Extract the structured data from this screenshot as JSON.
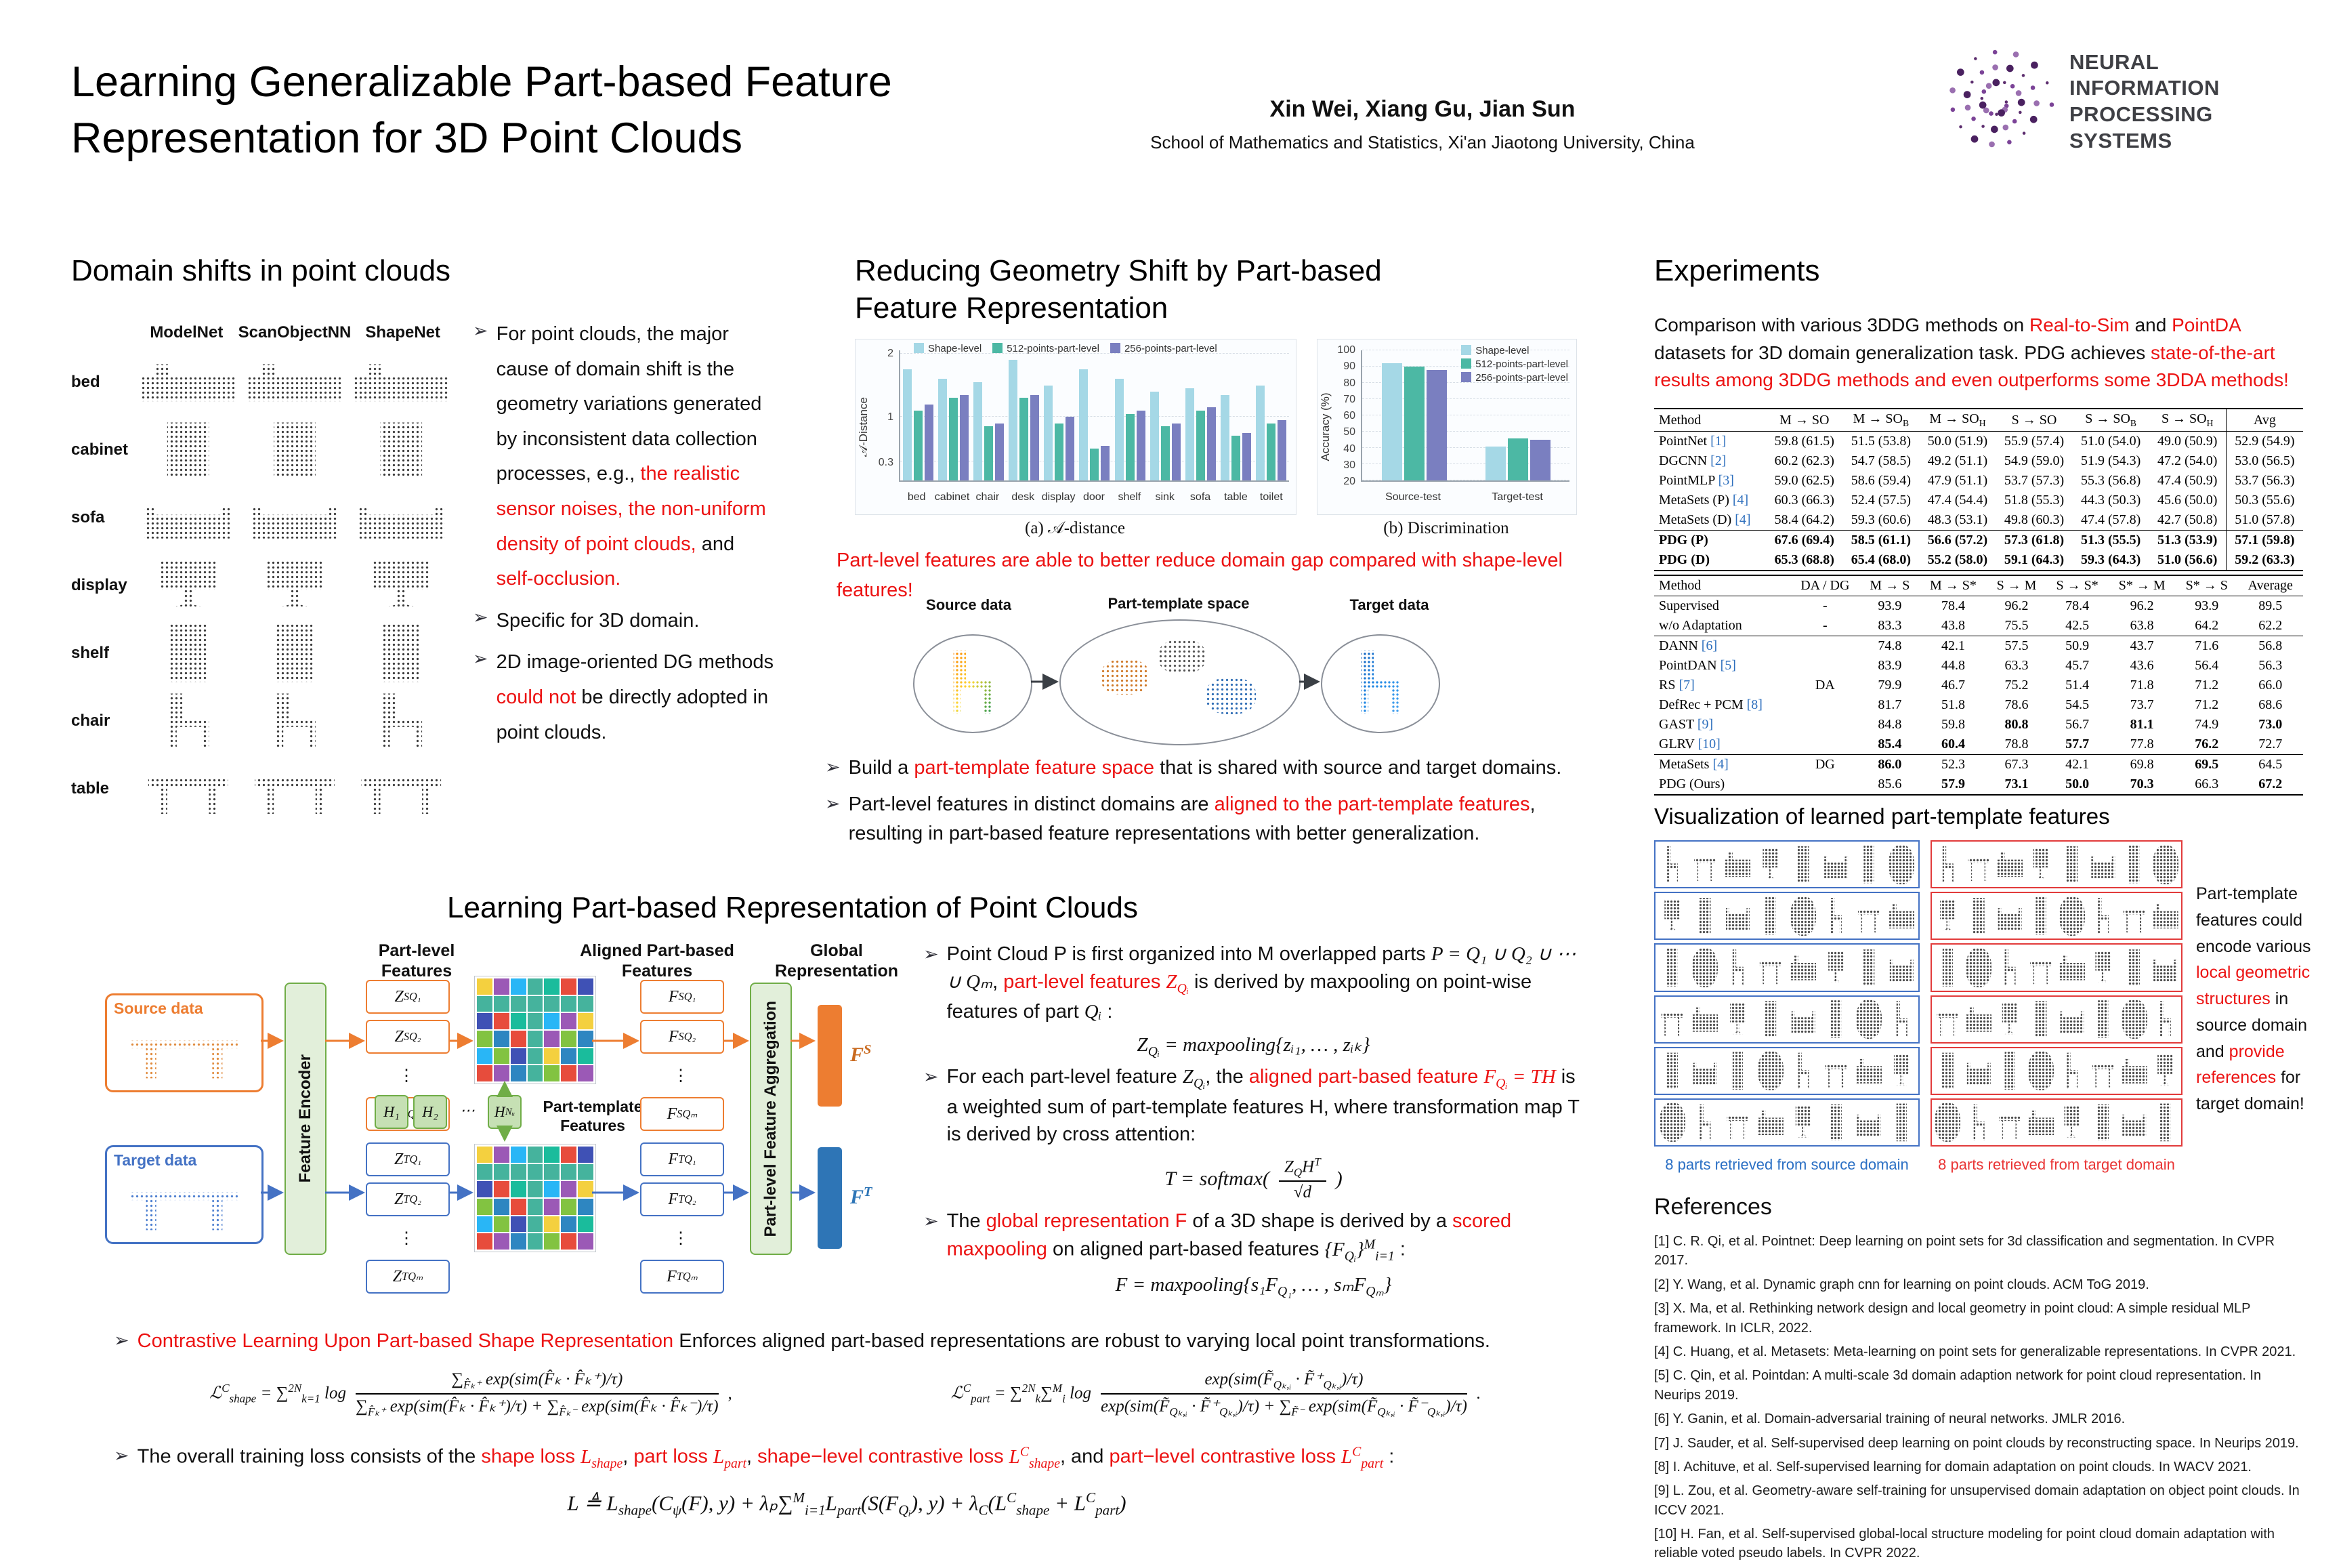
{
  "colors": {
    "accent_red": "#ec1313",
    "source_orange": "#ED7D31",
    "target_blue": "#4472C4",
    "template_green": "#70AD47",
    "chart_shape_level": "#a5d8e6",
    "chart_512_part": "#4cb8a4",
    "chart_256_part": "#7a7fc0"
  },
  "header": {
    "title": "Learning Generalizable Part-based Feature Representation for 3D Point Clouds",
    "authors": "Xin Wei, Xiang Gu, Jian Sun",
    "affiliation": "School of Mathematics and Statistics, Xi'an Jiaotong University, China",
    "logo_line1": "NEURAL INFORMATION",
    "logo_line2": "PROCESSING SYSTEMS"
  },
  "domain_shifts": {
    "heading": "Domain shifts in point clouds",
    "figure": {
      "columns": [
        "ModelNet",
        "ScanObjectNN",
        "ShapeNet"
      ],
      "rows": [
        "bed",
        "cabinet",
        "sofa",
        "display",
        "shelf",
        "chair",
        "table"
      ]
    },
    "bullets": [
      [
        {
          "t": "For point clouds, the major cause of domain shift is the geometry variations generated by inconsistent data collection processes, e.g., "
        },
        {
          "t": "the realistic sensor noises, the non-uniform density of point clouds,",
          "c": "red"
        },
        {
          "t": " and "
        },
        {
          "t": "self-occlusion.",
          "c": "red"
        }
      ],
      [
        {
          "t": "Specific for 3D domain."
        }
      ],
      [
        {
          "t": "2D image-oriented DG methods "
        },
        {
          "t": "could not",
          "c": "red"
        },
        {
          "t": " be directly adopted in point clouds."
        }
      ]
    ]
  },
  "geometry_shift": {
    "heading": "Reducing Geometry Shift by Part-based Feature Representation",
    "note": [
      {
        "t": "Part-level features are able to better reduce domain gap compared with shape-level features!",
        "c": "red"
      }
    ],
    "figure_labels": {
      "source": "Source data",
      "template": "Part-template space",
      "target": "Target data"
    },
    "bullets": [
      [
        {
          "t": "Build a "
        },
        {
          "t": "part-template feature space",
          "c": "red"
        },
        {
          "t": " that is shared with source and target domains."
        }
      ],
      [
        {
          "t": "Part-level features in distinct domains are "
        },
        {
          "t": "aligned to the part-template features",
          "c": "red"
        },
        {
          "t": ", resulting in part-based feature representations with better generalization."
        }
      ]
    ]
  },
  "chart_data": [
    {
      "type": "bar",
      "title": "(a) 𝒜-distance",
      "ylabel": "𝒜-Distance",
      "ylim": [
        0,
        2.05
      ],
      "yticks": [
        0.3,
        1.0,
        2.0
      ],
      "categories": [
        "bed",
        "cabinet",
        "chair",
        "desk",
        "display",
        "door",
        "shelf",
        "sink",
        "sofa",
        "table",
        "toilet"
      ],
      "series": [
        {
          "name": "Shape-level",
          "color": "#a5d8e6",
          "values": [
            1.75,
            1.6,
            1.55,
            1.9,
            1.5,
            1.75,
            1.6,
            1.4,
            1.45,
            1.35,
            1.5
          ]
        },
        {
          "name": "512-points-part-level",
          "color": "#4cb8a4",
          "values": [
            1.1,
            1.3,
            0.85,
            1.3,
            0.9,
            0.5,
            1.05,
            0.85,
            1.1,
            0.7,
            0.9
          ]
        },
        {
          "name": "256-points-part-level",
          "color": "#7a7fc0",
          "values": [
            1.2,
            1.35,
            0.9,
            1.35,
            1.0,
            0.55,
            1.1,
            0.9,
            1.15,
            0.75,
            0.95
          ]
        }
      ],
      "legend_position": "top"
    },
    {
      "type": "bar",
      "title": "(b) Discrimination",
      "ylabel": "Accuracy (%)",
      "ylim": [
        20,
        100
      ],
      "yticks": [
        20,
        30,
        40,
        50,
        60,
        70,
        80,
        90,
        100
      ],
      "categories": [
        "Source-test",
        "Target-test"
      ],
      "series": [
        {
          "name": "Shape-level",
          "color": "#a5d8e6",
          "values": [
            92,
            41
          ]
        },
        {
          "name": "512-points-part-level",
          "color": "#4cb8a4",
          "values": [
            90,
            46
          ]
        },
        {
          "name": "256-points-part-level",
          "color": "#7a7fc0",
          "values": [
            88,
            45
          ]
        }
      ],
      "legend_position": "top-right"
    }
  ],
  "method": {
    "heading": "Learning Part-based Representation of Point Clouds",
    "diagram": {
      "source_label": "Source data",
      "target_label": "Target data",
      "encoder_label": "Feature Encoder",
      "part_header": "Part-level Features",
      "aligned_header": "Aligned Part-based Features",
      "global_header": "Global Representation",
      "aggregation_label": "Part-level Feature Aggregation",
      "template_label": "Part-template Features",
      "z_source": [
        "Z^{S}_{Q₁}",
        "Z^{S}_{Q₂}",
        "⋮",
        "Z^{S}_{Qₘ}"
      ],
      "z_target": [
        "Z^{T}_{Q₁}",
        "Z^{T}_{Q₂}",
        "⋮",
        "Z^{T}_{Qₘ}"
      ],
      "f_source": [
        "F^{S}_{Q₁}",
        "F^{S}_{Q₂}",
        "⋮",
        "F^{S}_{Qₘ}"
      ],
      "f_target": [
        "F^{T}_{Q₁}",
        "F^{T}_{Q₂}",
        "⋮",
        "F^{T}_{Qₘ}"
      ],
      "templates": [
        "H₁",
        "H₂",
        "⋯",
        "H_{Nᵤ}"
      ],
      "global_source": "F^{S}",
      "global_target": "F^{T}"
    },
    "bullets": {
      "b1": [
        {
          "t": "Point Cloud P is first organized into M overlapped parts "
        },
        {
          "t": "P = Q₁ ∪ Q₂ ∪ ⋯ ∪ Qₘ",
          "m": 1
        },
        {
          "t": ", "
        },
        {
          "t": "part-level features ",
          "c": "red"
        },
        {
          "t": "Z_{Qᵢ}",
          "c": "red",
          "m": 1
        },
        {
          "t": " is derived by maxpooling on point-wise features of part "
        },
        {
          "t": "Qᵢ",
          "m": 1
        },
        {
          "t": " :"
        }
      ],
      "b2": [
        {
          "t": "For each part-level feature "
        },
        {
          "t": "Z_{Qᵢ}",
          "m": 1
        },
        {
          "t": ", the "
        },
        {
          "t": "aligned part-based feature ",
          "c": "red"
        },
        {
          "t": "F_{Qᵢ} = TH",
          "c": "red",
          "m": 1
        },
        {
          "t": " is a weighted sum of part-template features H, where transformation map T is derived by cross attention:"
        }
      ],
      "b3": [
        {
          "t": "The "
        },
        {
          "t": "global representation F",
          "c": "red"
        },
        {
          "t": " of a 3D shape is derived by a "
        },
        {
          "t": "scored maxpooling",
          "c": "red"
        },
        {
          "t": " on aligned part-based features "
        },
        {
          "t": "{F_{Qᵢ}}^{M}_{i=1}",
          "m": 1
        },
        {
          "t": " :"
        }
      ]
    },
    "contrastive": [
      {
        "t": "Contrastive Learning Upon Part-based Shape Representation",
        "c": "red"
      },
      {
        "t": " Enforces aligned part-based representations are robust to varying local point transformations."
      }
    ],
    "loss_line": [
      {
        "t": "The overall training loss consists of the "
      },
      {
        "t": "shape loss ",
        "c": "red"
      },
      {
        "t": "L_{shape}",
        "c": "red",
        "m": 1
      },
      {
        "t": ", "
      },
      {
        "t": "part loss ",
        "c": "red"
      },
      {
        "t": "L_{part}",
        "c": "red",
        "m": 1
      },
      {
        "t": ", "
      },
      {
        "t": "shape−level contrastive loss ",
        "c": "red"
      },
      {
        "t": "L^{C}_{shape}",
        "c": "red",
        "m": 1
      },
      {
        "t": ", and "
      },
      {
        "t": "part−level contrastive loss ",
        "c": "red"
      },
      {
        "t": "L^{C}_{part}",
        "c": "red",
        "m": 1
      },
      {
        "t": " :"
      }
    ],
    "formulas": {
      "zq": "Z_{Qᵢ} = maxpooling{zᵢ₁, … , zᵢₖ}",
      "t_lhs": "T = softmax(",
      "t_num": "Z_{Q}H^{T}",
      "t_den": "√d",
      "t_rhs": ")",
      "f": "F = maxpooling{s₁F_{Q₁}, … , sₘF_{Qₘ}}",
      "lshape_lhs": "ℒ^{C}_{shape} = ∑^{2N}_{k=1} log",
      "lshape_num": "∑_{F̂ₖ⁺} exp(sim(F̂ₖ · F̂ₖ⁺)/τ)",
      "lshape_den": "∑_{F̂ₖ⁺} exp(sim(F̂ₖ · F̂ₖ⁺)/τ) + ∑_{F̂ₖ⁻} exp(sim(F̂ₖ · F̂ₖ⁻)/τ)",
      "lshape_end": ",",
      "lpart_lhs": "ℒ^{C}_{part} = ∑^{2N}_{k}∑^{M}_{i} log",
      "lpart_num": "exp(sim(F̃_{Qₖ,ᵢ} · F̃⁺_{Qₖ,ᵢ})/τ)",
      "lpart_den": "exp(sim(F̃_{Qₖ,ᵢ} · F̃⁺_{Qₖ,ᵢ})/τ) + ∑_{F̃⁻} exp(sim(F̃_{Qₖ,ᵢ} · F̃⁻_{Qₖ,ᵢ})/τ)",
      "lpart_end": ".",
      "total": "L ≜ L_{shape}(C_{ψ}(F), y) + λₚ∑^{M}_{i=1}L_{part}(S(F_{Qᵢ}), y) + λ_{C}(L^{C}_{shape} + L^{C}_{part})"
    }
  },
  "experiments": {
    "heading": "Experiments",
    "intro": [
      {
        "t": "Comparison with various 3DDG methods on "
      },
      {
        "t": "Real-to-Sim",
        "c": "red"
      },
      {
        "t": " and "
      },
      {
        "t": "PointDA",
        "c": "red"
      },
      {
        "t": " datasets for 3D domain generalization task. PDG achieves "
      },
      {
        "t": "state-of-the-art results among 3DDG methods and even outperforms some 3DDA methods!",
        "c": "red"
      }
    ],
    "table1": {
      "headers": [
        "Method",
        "M → SO",
        "M → SO_{B}",
        "M → SO_{H}",
        "S → SO",
        "S → SO_{B}",
        "S → SO_{H}",
        "Avg"
      ],
      "rows": [
        {
          "c": [
            "PointNet [1]",
            "59.8 (61.5)",
            "51.5 (53.8)",
            "50.0 (51.9)",
            "55.9 (57.4)",
            "51.0 (54.0)",
            "49.0 (50.9)",
            "52.9 (54.9)"
          ]
        },
        {
          "c": [
            "DGCNN [2]",
            "60.2 (62.3)",
            "54.7 (58.5)",
            "49.2 (51.1)",
            "54.9 (59.0)",
            "51.9 (54.3)",
            "47.2 (54.0)",
            "53.0 (56.5)"
          ]
        },
        {
          "c": [
            "PointMLP [3]",
            "59.0 (62.5)",
            "58.6 (59.4)",
            "47.9 (51.1)",
            "53.7 (57.3)",
            "55.3 (56.8)",
            "47.4 (50.9)",
            "53.7 (56.3)"
          ]
        },
        {
          "c": [
            "MetaSets (P) [4]",
            "60.3 (66.3)",
            "52.4 (57.5)",
            "47.4 (54.4)",
            "51.8 (55.3)",
            "44.3 (50.3)",
            "45.6 (50.0)",
            "50.3 (55.6)"
          ]
        },
        {
          "c": [
            "MetaSets (D) [4]",
            "58.4 (64.2)",
            "59.3 (60.6)",
            "48.3 (53.1)",
            "49.8 (60.3)",
            "47.4 (57.8)",
            "42.7 (50.8)",
            "51.0 (57.8)"
          ]
        },
        {
          "c": [
            "PDG (P)",
            "67.6 (69.4)",
            "58.5 (61.1)",
            "56.6 (57.2)",
            "57.3 (61.8)",
            "51.3 (55.5)",
            "51.3 (53.9)",
            "57.1 (59.8)"
          ],
          "bold": true,
          "top": true
        },
        {
          "c": [
            "PDG (D)",
            "65.3 (68.8)",
            "65.4 (68.0)",
            "55.2 (58.0)",
            "59.1 (64.3)",
            "59.3 (64.3)",
            "51.0 (56.6)",
            "59.2 (63.3)"
          ],
          "bold": true
        }
      ]
    },
    "table2": {
      "headers": [
        "Method",
        "DA / DG",
        "M → S",
        "M → S*",
        "S → M",
        "S → S*",
        "S* → M",
        "S* → S",
        "Average"
      ],
      "rows": [
        {
          "c": [
            "Supervised",
            "-",
            "93.9",
            "78.4",
            "96.2",
            "78.4",
            "96.2",
            "93.9",
            "89.5"
          ]
        },
        {
          "c": [
            "w/o Adaptation",
            "-",
            "83.3",
            "43.8",
            "75.5",
            "42.5",
            "63.8",
            "64.2",
            "62.2"
          ]
        },
        {
          "c": [
            "DANN [6]",
            "",
            "74.8",
            "42.1",
            "57.5",
            "50.9",
            "43.7",
            "71.6",
            "56.8"
          ],
          "top": true
        },
        {
          "c": [
            "PointDAN [5]",
            "",
            "83.9",
            "44.8",
            "63.3",
            "45.7",
            "43.6",
            "56.4",
            "56.3"
          ]
        },
        {
          "c": [
            "RS [7]",
            "DA",
            "79.9",
            "46.7",
            "75.2",
            "51.4",
            "71.8",
            "71.2",
            "66.0"
          ]
        },
        {
          "c": [
            "DefRec + PCM [8]",
            "",
            "81.7",
            "51.8",
            "78.6",
            "54.5",
            "73.7",
            "71.2",
            "68.6"
          ]
        },
        {
          "c": [
            "GAST [9]",
            "",
            "84.8",
            "59.8",
            "**80.8**",
            "56.7",
            "**81.1**",
            "74.9",
            "**73.0**"
          ]
        },
        {
          "c": [
            "GLRV [10]",
            "",
            "**85.4**",
            "**60.4**",
            "78.8",
            "**57.7**",
            "77.8",
            "**76.2**",
            "72.7"
          ]
        },
        {
          "c": [
            "MetaSets [4]",
            "DG",
            "**86.0**",
            "52.3",
            "67.3",
            "42.1",
            "69.8",
            "**69.5**",
            "64.5"
          ],
          "top": true
        },
        {
          "c": [
            "PDG (Ours)",
            "",
            "85.6",
            "**57.9**",
            "**73.1**",
            "**50.0**",
            "**70.3**",
            "66.3",
            "**67.2**"
          ]
        }
      ]
    },
    "viz": {
      "heading": "Visualization of learned part-template features",
      "caption_left": "8 parts retrieved from source domain",
      "caption_right": "8 parts retrieved from target domain",
      "note": [
        {
          "t": "Part-template features could encode various "
        },
        {
          "t": "local geometric structures",
          "c": "red"
        },
        {
          "t": " in source domain and "
        },
        {
          "t": "provide references",
          "c": "red"
        },
        {
          "t": " for target domain!"
        }
      ]
    },
    "references": {
      "heading": "References",
      "items": [
        "[1] C. R. Qi, et al. Pointnet: Deep learning on point sets for 3d classification and segmentation. In CVPR 2017.",
        "[2] Y. Wang, et al. Dynamic graph cnn for learning on point clouds. ACM ToG 2019.",
        "[3] X. Ma, et al. Rethinking network design and local geometry in point cloud: A simple residual MLP framework. In ICLR, 2022.",
        "[4] C. Huang, et al. Metasets: Meta-learning on point sets for generalizable representations. In CVPR 2021.",
        "[5] C. Qin, et al. Pointdan: A multi-scale 3d domain adaption network for point cloud representation. In Neurips 2019.",
        "[6] Y. Ganin, et al. Domain-adversarial training of neural networks. JMLR 2016.",
        "[7] J. Sauder, et al. Self-supervised deep learning on point clouds by reconstructing space. In Neurips 2019.",
        "[8] I. Achituve, et al. Self-supervised learning for domain adaptation on point clouds. In WACV 2021.",
        "[9] L. Zou, et al. Geometry-aware self-training for unsupervised domain adaptation on object point clouds. In ICCV 2021.",
        "[10] H. Fan, et al. Self-supervised global-local structure modeling for point cloud domain adaptation with reliable voted pseudo labels. In CVPR 2022."
      ]
    }
  }
}
